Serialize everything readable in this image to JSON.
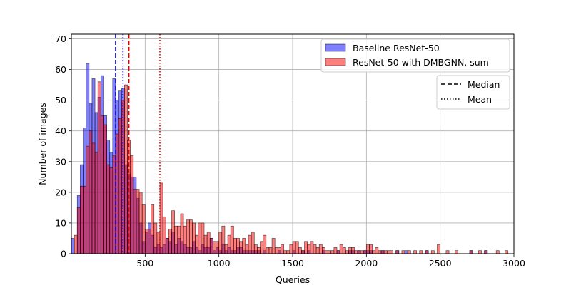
{
  "chart_data": {
    "type": "bar",
    "subtype": "overlapping-histogram",
    "xlabel": "Queries",
    "ylabel": "Number of images",
    "xlim": [
      0,
      3000
    ],
    "ylim": [
      0,
      71.5
    ],
    "xticks": [
      500,
      1000,
      1500,
      2000,
      2500,
      3000
    ],
    "yticks": [
      0,
      10,
      20,
      30,
      40,
      50,
      60,
      70
    ],
    "grid": true,
    "bin_width": 20,
    "series": [
      {
        "name": "Baseline ResNet-50",
        "color": "#0000ff",
        "bin_starts": [
          0,
          40,
          60,
          80,
          100,
          120,
          140,
          160,
          180,
          200,
          220,
          240,
          260,
          280,
          300,
          320,
          340,
          360,
          380,
          400,
          420,
          440,
          460,
          480,
          500,
          520,
          540,
          560,
          580,
          600,
          620,
          640,
          660,
          680,
          700,
          720,
          740,
          760,
          780,
          800,
          820,
          840,
          860,
          880,
          900,
          920,
          940,
          960,
          980,
          1000,
          1020,
          1040,
          1060,
          1080,
          1100,
          1120,
          1140,
          1160,
          1180,
          1200,
          1220,
          1240,
          1260,
          1300,
          1400,
          1500,
          1560,
          1600,
          1700,
          1800,
          1880,
          1900,
          1940,
          1980,
          2000,
          2020,
          2100,
          2200,
          2260,
          2400,
          2700,
          2800
        ],
        "values": [
          5,
          19,
          29,
          41,
          62,
          49,
          57,
          46,
          51,
          58,
          45,
          37,
          33,
          57,
          50,
          53,
          54,
          29,
          26,
          25,
          25,
          18,
          10,
          4,
          7,
          10,
          6,
          2,
          3,
          2,
          3,
          5,
          4,
          7,
          3,
          5,
          4,
          3,
          2,
          2,
          4,
          2,
          1,
          3,
          2,
          2,
          5,
          1,
          2,
          1,
          3,
          1,
          2,
          1,
          1,
          2,
          2,
          1,
          1,
          1,
          1,
          1,
          1,
          1,
          1,
          1,
          1,
          1,
          1,
          1,
          1,
          1,
          1,
          1,
          1,
          1,
          1,
          1,
          1,
          1,
          1,
          1
        ],
        "median": 300,
        "mean": 350
      },
      {
        "name": "ResNet-50 with DMBGNN, sum",
        "color": "#ff0000",
        "bin_starts": [
          20,
          40,
          60,
          80,
          100,
          120,
          140,
          160,
          180,
          200,
          220,
          240,
          260,
          280,
          300,
          320,
          340,
          360,
          380,
          400,
          420,
          440,
          460,
          480,
          500,
          520,
          540,
          560,
          580,
          600,
          620,
          640,
          660,
          680,
          700,
          720,
          740,
          760,
          780,
          800,
          820,
          840,
          860,
          880,
          900,
          920,
          940,
          960,
          980,
          1000,
          1020,
          1040,
          1060,
          1080,
          1100,
          1120,
          1140,
          1160,
          1180,
          1200,
          1220,
          1240,
          1260,
          1280,
          1300,
          1320,
          1340,
          1360,
          1380,
          1400,
          1420,
          1440,
          1460,
          1480,
          1500,
          1520,
          1540,
          1560,
          1580,
          1600,
          1620,
          1640,
          1660,
          1680,
          1700,
          1720,
          1740,
          1760,
          1780,
          1800,
          1820,
          1840,
          1860,
          1880,
          1900,
          1920,
          1940,
          1960,
          1980,
          2000,
          2020,
          2040,
          2060,
          2080,
          2100,
          2120,
          2140,
          2160,
          2200,
          2240,
          2280,
          2320,
          2360,
          2400,
          2440,
          2480,
          2540,
          2600,
          2700,
          2760,
          2800,
          2880,
          2940
        ],
        "values": [
          6,
          15,
          22,
          22,
          35,
          40,
          36,
          33,
          56,
          45,
          42,
          29,
          28,
          32,
          39,
          44,
          50,
          55,
          37,
          32,
          21,
          21,
          20,
          16,
          8,
          8,
          16,
          10,
          7,
          23,
          12,
          5,
          8,
          14,
          9,
          9,
          13,
          9,
          11,
          11,
          10,
          6,
          10,
          10,
          6,
          7,
          5,
          4,
          4,
          7,
          9,
          3,
          6,
          9,
          5,
          5,
          4,
          5,
          3,
          6,
          7,
          3,
          2,
          4,
          6,
          2,
          2,
          5,
          2,
          2,
          3,
          1,
          1,
          3,
          4,
          4,
          2,
          1,
          4,
          3,
          4,
          3,
          2,
          3,
          2,
          1,
          1,
          1,
          2,
          1,
          3,
          2,
          1,
          2,
          2,
          1,
          1,
          1,
          1,
          3,
          3,
          1,
          2,
          1,
          1,
          1,
          1,
          1,
          1,
          1,
          1,
          1,
          1,
          1,
          1,
          3,
          1,
          1,
          1,
          1,
          1,
          1,
          1
        ],
        "median": 390,
        "mean": 600
      }
    ],
    "legend": {
      "placement": "upper-right",
      "style_entries": [
        {
          "label": "Median",
          "dash": "dashed"
        },
        {
          "label": "Mean",
          "dash": "dotted"
        }
      ]
    }
  }
}
